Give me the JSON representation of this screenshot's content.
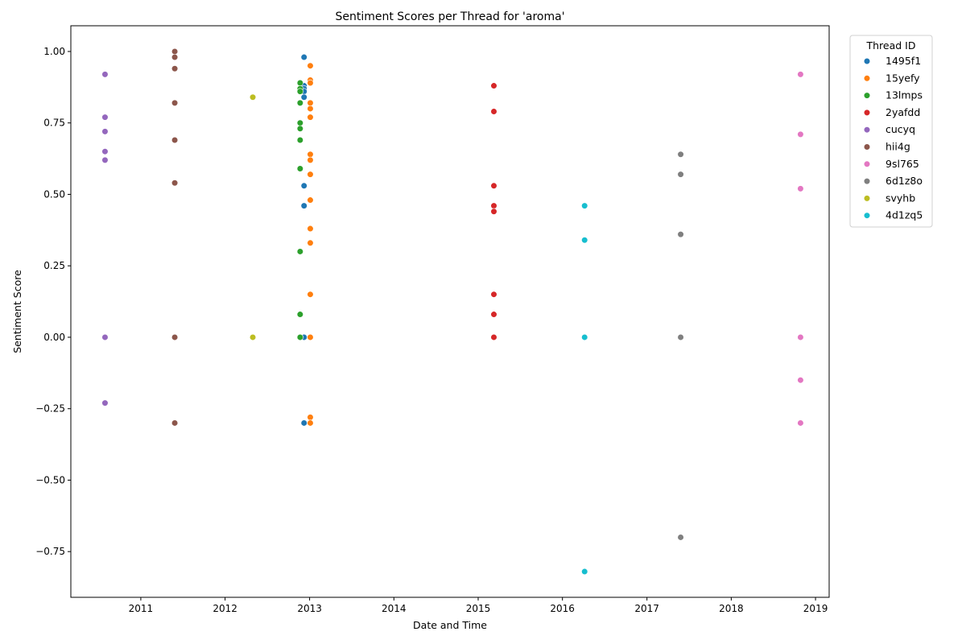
{
  "chart_data": {
    "type": "scatter",
    "title": "Sentiment Scores per Thread for 'aroma'",
    "xlabel": "Date and Time",
    "ylabel": "Sentiment Score",
    "x_ticks": [
      "2011",
      "2012",
      "2013",
      "2014",
      "2015",
      "2016",
      "2017",
      "2018",
      "2019"
    ],
    "y_ticks": [
      "−0.75",
      "−0.50",
      "−0.25",
      "0.00",
      "0.25",
      "0.50",
      "0.75",
      "1.00"
    ],
    "xlim": [
      "2010-03-04",
      "2019-03-01"
    ],
    "ylim": [
      -0.91,
      1.09
    ],
    "grid": false,
    "legend": {
      "title": "Thread ID",
      "placement": "upper-right-outside"
    },
    "series": [
      {
        "name": "1495f1",
        "color": "#1f77b4",
        "date": "2012-12-08",
        "values": [
          0.98,
          0.88,
          0.87,
          0.86,
          0.84,
          0.53,
          0.46,
          0.0,
          -0.3
        ]
      },
      {
        "name": "15yefy",
        "color": "#ff7f0e",
        "date": "2013-01-04",
        "values": [
          0.95,
          0.9,
          0.89,
          0.82,
          0.8,
          0.77,
          0.64,
          0.62,
          0.57,
          0.48,
          0.38,
          0.33,
          0.15,
          0.0,
          -0.28,
          -0.3
        ]
      },
      {
        "name": "13lmps",
        "color": "#2ca02c",
        "date": "2012-11-21",
        "values": [
          0.89,
          0.87,
          0.86,
          0.82,
          0.75,
          0.73,
          0.69,
          0.59,
          0.3,
          0.08,
          0.0
        ]
      },
      {
        "name": "2yafdd",
        "color": "#d62728",
        "date": "2015-03-10",
        "values": [
          0.88,
          0.79,
          0.53,
          0.46,
          0.44,
          0.15,
          0.08,
          0.0
        ]
      },
      {
        "name": "cucyq",
        "color": "#9467bd",
        "date": "2010-07-30",
        "values": [
          0.92,
          0.77,
          0.72,
          0.65,
          0.62,
          0.0,
          -0.23
        ]
      },
      {
        "name": "hii4g",
        "color": "#8c564b",
        "date": "2011-05-28",
        "values": [
          1.0,
          0.98,
          0.94,
          0.82,
          0.69,
          0.54,
          0.0,
          -0.3
        ]
      },
      {
        "name": "9sl765",
        "color": "#e377c2",
        "date": "2018-10-28",
        "values": [
          0.92,
          0.71,
          0.52,
          0.0,
          -0.15,
          -0.3
        ]
      },
      {
        "name": "6d1z8o",
        "color": "#7f7f7f",
        "date": "2017-05-27",
        "values": [
          0.64,
          0.57,
          0.36,
          0.0,
          -0.7
        ]
      },
      {
        "name": "svyhb",
        "color": "#bcbd22",
        "date": "2012-04-30",
        "values": [
          0.84,
          0.0
        ]
      },
      {
        "name": "4d1zq5",
        "color": "#17becf",
        "date": "2016-04-06",
        "values": [
          0.46,
          0.34,
          0.0,
          -0.82
        ]
      }
    ]
  }
}
